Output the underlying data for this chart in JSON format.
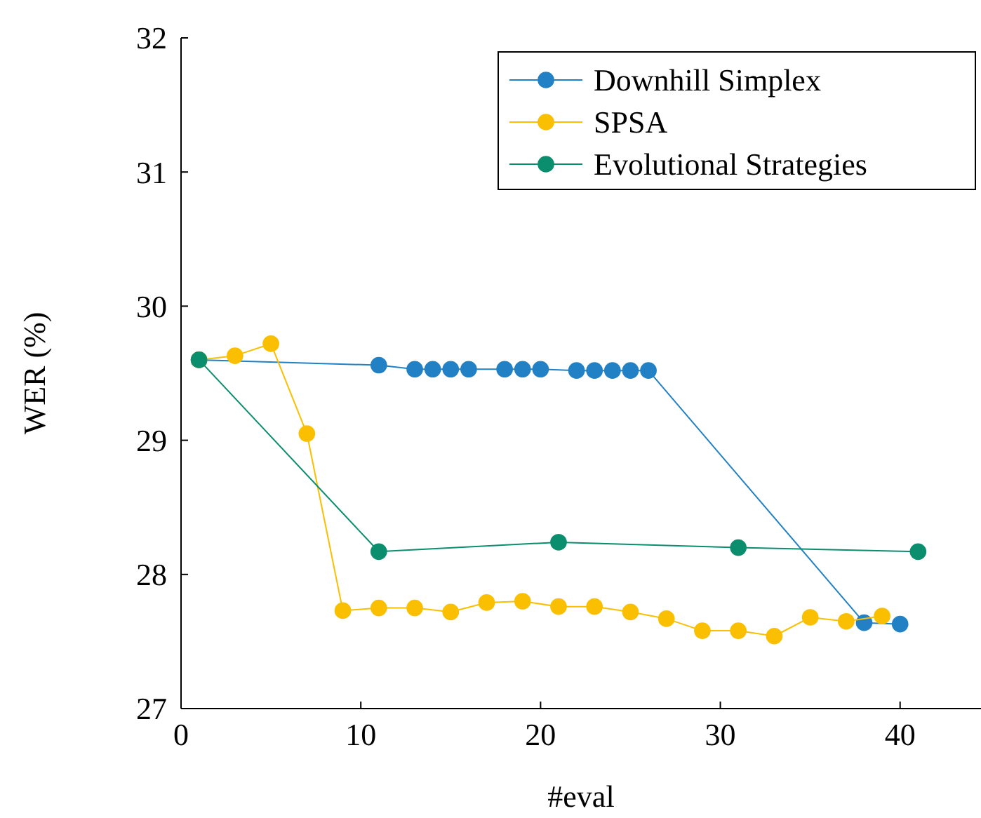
{
  "chart_data": {
    "type": "line",
    "xlabel": "#eval",
    "ylabel": "WER (%)",
    "xlim": [
      0,
      44.5
    ],
    "xticks": [
      0,
      10,
      20,
      30,
      40
    ],
    "ylim": [
      27,
      32
    ],
    "yticks": [
      27,
      28,
      29,
      30,
      31,
      32
    ],
    "grid": false,
    "legend": "top right",
    "marker": "circle",
    "line_style": "solid",
    "series": [
      {
        "name": "Downhill Simplex",
        "color": "#2181c4",
        "x": [
          1,
          11,
          13,
          14,
          15,
          16,
          18,
          19,
          20,
          22,
          23,
          24,
          25,
          26,
          38,
          40
        ],
        "values": [
          29.6,
          29.56,
          29.53,
          29.53,
          29.53,
          29.53,
          29.53,
          29.53,
          29.53,
          29.52,
          29.52,
          29.52,
          29.52,
          29.52,
          27.64,
          27.63
        ]
      },
      {
        "name": "SPSA",
        "color": "#f9bf00",
        "x": [
          1,
          3,
          5,
          7,
          9,
          11,
          13,
          15,
          17,
          19,
          21,
          23,
          25,
          27,
          29,
          31,
          33,
          35,
          37,
          39
        ],
        "values": [
          29.6,
          29.63,
          29.72,
          29.05,
          27.73,
          27.75,
          27.75,
          27.72,
          27.79,
          27.8,
          27.76,
          27.76,
          27.72,
          27.67,
          27.58,
          27.58,
          27.54,
          27.68,
          27.65,
          27.69
        ]
      },
      {
        "name": "Evolutional Strategies",
        "color": "#0b8e6d",
        "x": [
          1,
          11,
          21,
          31,
          41
        ],
        "values": [
          29.6,
          28.17,
          28.24,
          28.2,
          28.17
        ]
      }
    ]
  }
}
